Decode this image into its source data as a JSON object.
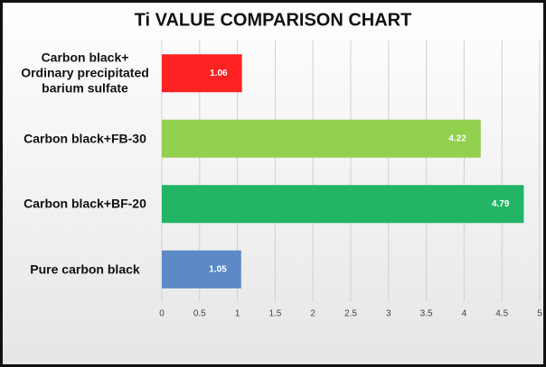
{
  "chart_data": {
    "type": "bar",
    "orientation": "horizontal",
    "title": "Ti VALUE COMPARISON CHART",
    "categories": [
      "Carbon black+ Ordinary precipitated barium sulfate",
      "Carbon black+FB-30",
      "Carbon black+BF-20",
      "Pure carbon black"
    ],
    "values": [
      1.06,
      4.22,
      4.79,
      1.05
    ],
    "colors": [
      "#ff2222",
      "#92d050",
      "#22b566",
      "#5b8ac6"
    ],
    "xlim": [
      0,
      5
    ],
    "xticks": [
      0,
      0.5,
      1,
      1.5,
      2,
      2.5,
      3,
      3.5,
      4,
      4.5,
      5
    ],
    "grid": true
  }
}
